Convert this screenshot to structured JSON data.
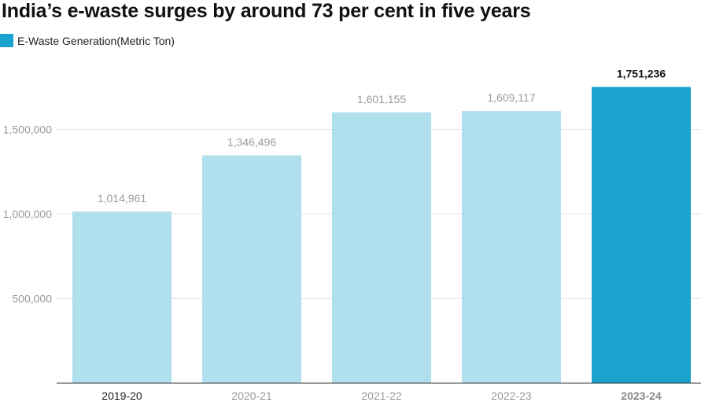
{
  "chart_data": {
    "type": "bar",
    "title": "India’s e-waste surges by around 73 per cent in five years",
    "legend": [
      "E-Waste Generation(Metric Ton)"
    ],
    "categories": [
      "2019-20",
      "2020-21",
      "2021-22",
      "2022-23",
      "2023-24"
    ],
    "values": [
      1014961,
      1346496,
      1601155,
      1609117,
      1751236
    ],
    "value_labels": [
      "1,014,961",
      "1,346,496",
      "1,601,155",
      "1,609,117",
      "1,751,236"
    ],
    "ylim": [
      0,
      1800000
    ],
    "yticks": [
      500000,
      1000000,
      1500000
    ],
    "ytick_labels": [
      "500,000",
      "1,000,000",
      "1,500,000"
    ],
    "xlabel": "",
    "ylabel": "",
    "grid": true,
    "highlight_index": 4,
    "colors": {
      "bar": "#b0dfee",
      "highlight": "#1aa3cf",
      "legend": "#1aa3cf",
      "grid": "#e6e6e6",
      "axis": "#333333"
    }
  }
}
